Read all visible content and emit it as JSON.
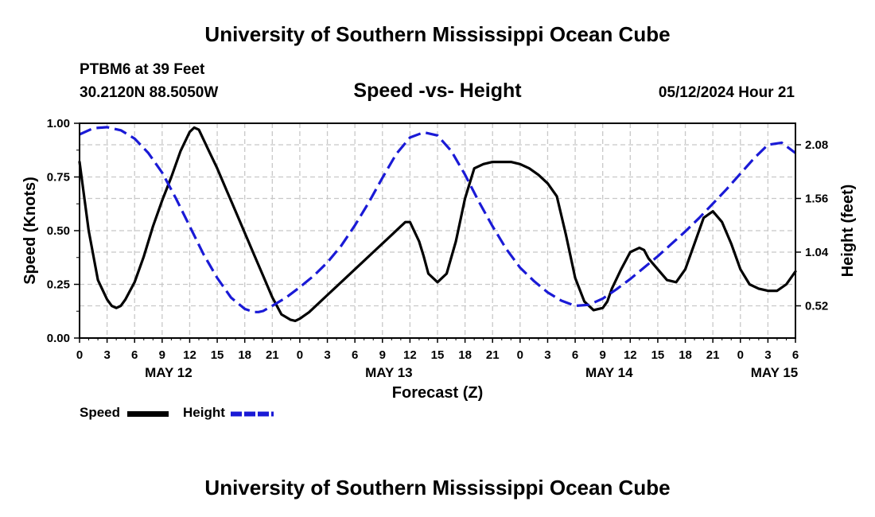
{
  "page": {
    "title_top": "University of Southern Mississippi Ocean Cube",
    "title_bottom": "University of Southern Mississippi Ocean Cube",
    "station": "PTBM6 at 39 Feet",
    "coords": "30.2120N  88.5050W",
    "datetime": "05/12/2024 Hour 21"
  },
  "chart_data": {
    "type": "line",
    "title": "Speed -vs- Height",
    "xlabel": "Forecast (Z)",
    "ylabel": "Speed (Knots)",
    "y2label": "Height (feet)",
    "xlim": [
      0,
      78
    ],
    "ylim": [
      0,
      1
    ],
    "y2lim": [
      0.208,
      2.288
    ],
    "x_ticks": [
      0,
      3,
      6,
      9,
      12,
      15,
      18,
      21,
      24,
      27,
      30,
      33,
      36,
      39,
      42,
      45,
      48,
      51,
      54,
      57,
      60,
      63,
      66,
      69,
      72,
      75,
      78
    ],
    "x_tick_labels": [
      "0",
      "3",
      "6",
      "9",
      "12",
      "15",
      "18",
      "21",
      "0",
      "3",
      "6",
      "9",
      "12",
      "15",
      "18",
      "21",
      "0",
      "3",
      "6",
      "9",
      "12",
      "15",
      "18",
      "21",
      "0",
      "3",
      "6"
    ],
    "date_labels": [
      {
        "x": 9.7,
        "label": "MAY 12"
      },
      {
        "x": 33.7,
        "label": "MAY 13"
      },
      {
        "x": 57.7,
        "label": "MAY 14"
      },
      {
        "x": 75.7,
        "label": "MAY 15"
      }
    ],
    "y_ticks": [
      0,
      0.25,
      0.5,
      0.75,
      1.0
    ],
    "y_tick_labels": [
      "0.00",
      "0.25",
      "0.50",
      "0.75",
      "1.00"
    ],
    "y2_ticks": [
      0.52,
      1.04,
      1.56,
      2.08
    ],
    "y2_tick_labels": [
      "0.52",
      "1.04",
      "1.56",
      "2.08"
    ],
    "series": [
      {
        "name": "Speed",
        "axis": "left",
        "color": "#000000",
        "style": "solid",
        "x": [
          0,
          1,
          2,
          3,
          3.5,
          4,
          4.5,
          5,
          6,
          7,
          8,
          9,
          10,
          11,
          12,
          12.5,
          13,
          14,
          15,
          16,
          17,
          18,
          19,
          20,
          21,
          22,
          23,
          23.5,
          24,
          25,
          26,
          27,
          28,
          29,
          30,
          31,
          32,
          33,
          34,
          35,
          35.5,
          36,
          37,
          37.5,
          38,
          39,
          40,
          41,
          42,
          43,
          44,
          45,
          46,
          47,
          48,
          49,
          50,
          51,
          52,
          53,
          54,
          55,
          56,
          57,
          57.5,
          58,
          59,
          60,
          61,
          61.5,
          62,
          63,
          64,
          65,
          66,
          67,
          68,
          69,
          70,
          71,
          72,
          73,
          74,
          75,
          76,
          77,
          78
        ],
        "values": [
          0.82,
          0.5,
          0.27,
          0.18,
          0.15,
          0.14,
          0.15,
          0.18,
          0.26,
          0.38,
          0.52,
          0.64,
          0.75,
          0.87,
          0.96,
          0.98,
          0.97,
          0.88,
          0.79,
          0.69,
          0.59,
          0.49,
          0.39,
          0.29,
          0.19,
          0.11,
          0.085,
          0.08,
          0.09,
          0.12,
          0.16,
          0.2,
          0.24,
          0.28,
          0.32,
          0.36,
          0.4,
          0.44,
          0.48,
          0.52,
          0.54,
          0.54,
          0.45,
          0.38,
          0.3,
          0.26,
          0.3,
          0.45,
          0.65,
          0.79,
          0.81,
          0.82,
          0.82,
          0.82,
          0.81,
          0.79,
          0.76,
          0.72,
          0.66,
          0.48,
          0.28,
          0.17,
          0.13,
          0.14,
          0.17,
          0.23,
          0.32,
          0.4,
          0.42,
          0.41,
          0.37,
          0.32,
          0.27,
          0.26,
          0.32,
          0.44,
          0.56,
          0.59,
          0.54,
          0.44,
          0.32,
          0.25,
          0.23,
          0.22,
          0.22,
          0.25,
          0.31
        ]
      },
      {
        "name": "Height",
        "axis": "right",
        "color": "#1a1ad6",
        "style": "dashed",
        "x": [
          0,
          1.5,
          3,
          4.5,
          6,
          7.5,
          9,
          10.5,
          12,
          13.5,
          15,
          16.5,
          18,
          19,
          19.5,
          20,
          21,
          22.5,
          24,
          25.5,
          27,
          28.5,
          30,
          31.5,
          33,
          34.5,
          36,
          37.5,
          39,
          40.5,
          42,
          43.5,
          45,
          46.5,
          48,
          49.5,
          51,
          52.5,
          54,
          55.5,
          57,
          58.5,
          60,
          61.5,
          63,
          64.5,
          66,
          67.5,
          69,
          70.5,
          72,
          73.5,
          75,
          76.5,
          78
        ],
        "values": [
          2.18,
          2.24,
          2.25,
          2.22,
          2.14,
          2.0,
          1.81,
          1.56,
          1.29,
          1.02,
          0.79,
          0.6,
          0.49,
          0.46,
          0.46,
          0.47,
          0.52,
          0.6,
          0.7,
          0.81,
          0.94,
          1.1,
          1.3,
          1.52,
          1.76,
          1.99,
          2.15,
          2.2,
          2.17,
          2.02,
          1.79,
          1.53,
          1.29,
          1.07,
          0.89,
          0.76,
          0.65,
          0.57,
          0.52,
          0.53,
          0.59,
          0.68,
          0.78,
          0.89,
          1.0,
          1.12,
          1.24,
          1.37,
          1.51,
          1.65,
          1.8,
          1.95,
          2.08,
          2.1,
          2.0
        ]
      }
    ],
    "legend": [
      {
        "label": "Speed",
        "color": "#000000",
        "style": "solid"
      },
      {
        "label": "Height",
        "color": "#1a1ad6",
        "style": "dashed"
      }
    ],
    "grid": true
  }
}
